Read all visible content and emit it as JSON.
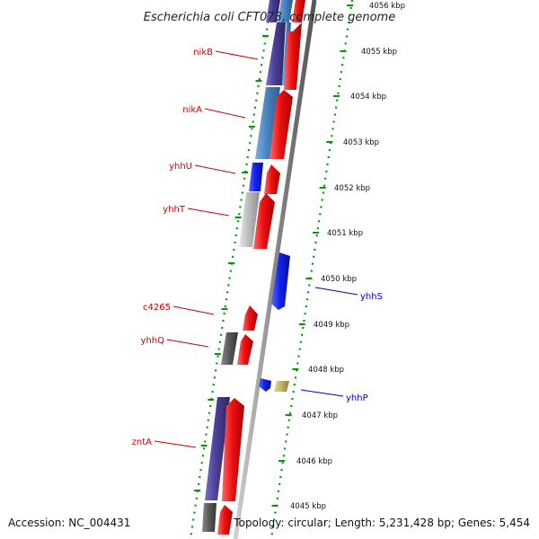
{
  "title": "Escherichia coli CFT073, complete genome",
  "footer": {
    "accession": "Accession: NC_004431",
    "topology": "Topology: circular; Length: 5,231,428 bp; Genes: 5,454"
  },
  "colors": {
    "label_left": "#cc0000",
    "label_right": "#0000cc",
    "tick": "#009900",
    "backbone": "#8a8a8a",
    "red": "#ee1111",
    "blue": "#1122ee",
    "navy": "#4a3f96",
    "steel": "#4a86c0",
    "silver": "#bdbdbd",
    "dark_gray": "#5c5c5c",
    "khaki": "#c8b56a"
  },
  "ruler": {
    "unit": "kbp",
    "labels": [
      "4056 kbp",
      "4055 kbp",
      "4054 kbp",
      "4053 kbp",
      "4052 kbp",
      "4051 kbp",
      "4050 kbp",
      "4049 kbp",
      "4048 kbp",
      "4047 kbp",
      "4046 kbp",
      "4045 kbp"
    ]
  },
  "genes": [
    {
      "label": "nikB",
      "side": "left",
      "color_key": "navy",
      "strand": "minus"
    },
    {
      "label": "nikA",
      "side": "left",
      "color_key": "steel",
      "strand": "minus"
    },
    {
      "label": "yhhU",
      "side": "left",
      "color_key": "blue",
      "strand": "minus"
    },
    {
      "label": "yhhT",
      "side": "left",
      "color_key": "silver",
      "strand": "minus"
    },
    {
      "label": "yhhS",
      "side": "right",
      "color_key": "blue",
      "strand": "plus"
    },
    {
      "label": "c4265",
      "side": "left",
      "color_key": "red",
      "strand": "minus"
    },
    {
      "label": "yhhQ",
      "side": "left",
      "color_key": "dark_gray",
      "strand": "minus"
    },
    {
      "label": "yhhP",
      "side": "right",
      "color_key": "blue",
      "strand": "plus"
    },
    {
      "label": "zntA",
      "side": "left",
      "color_key": "navy",
      "strand": "minus"
    }
  ]
}
